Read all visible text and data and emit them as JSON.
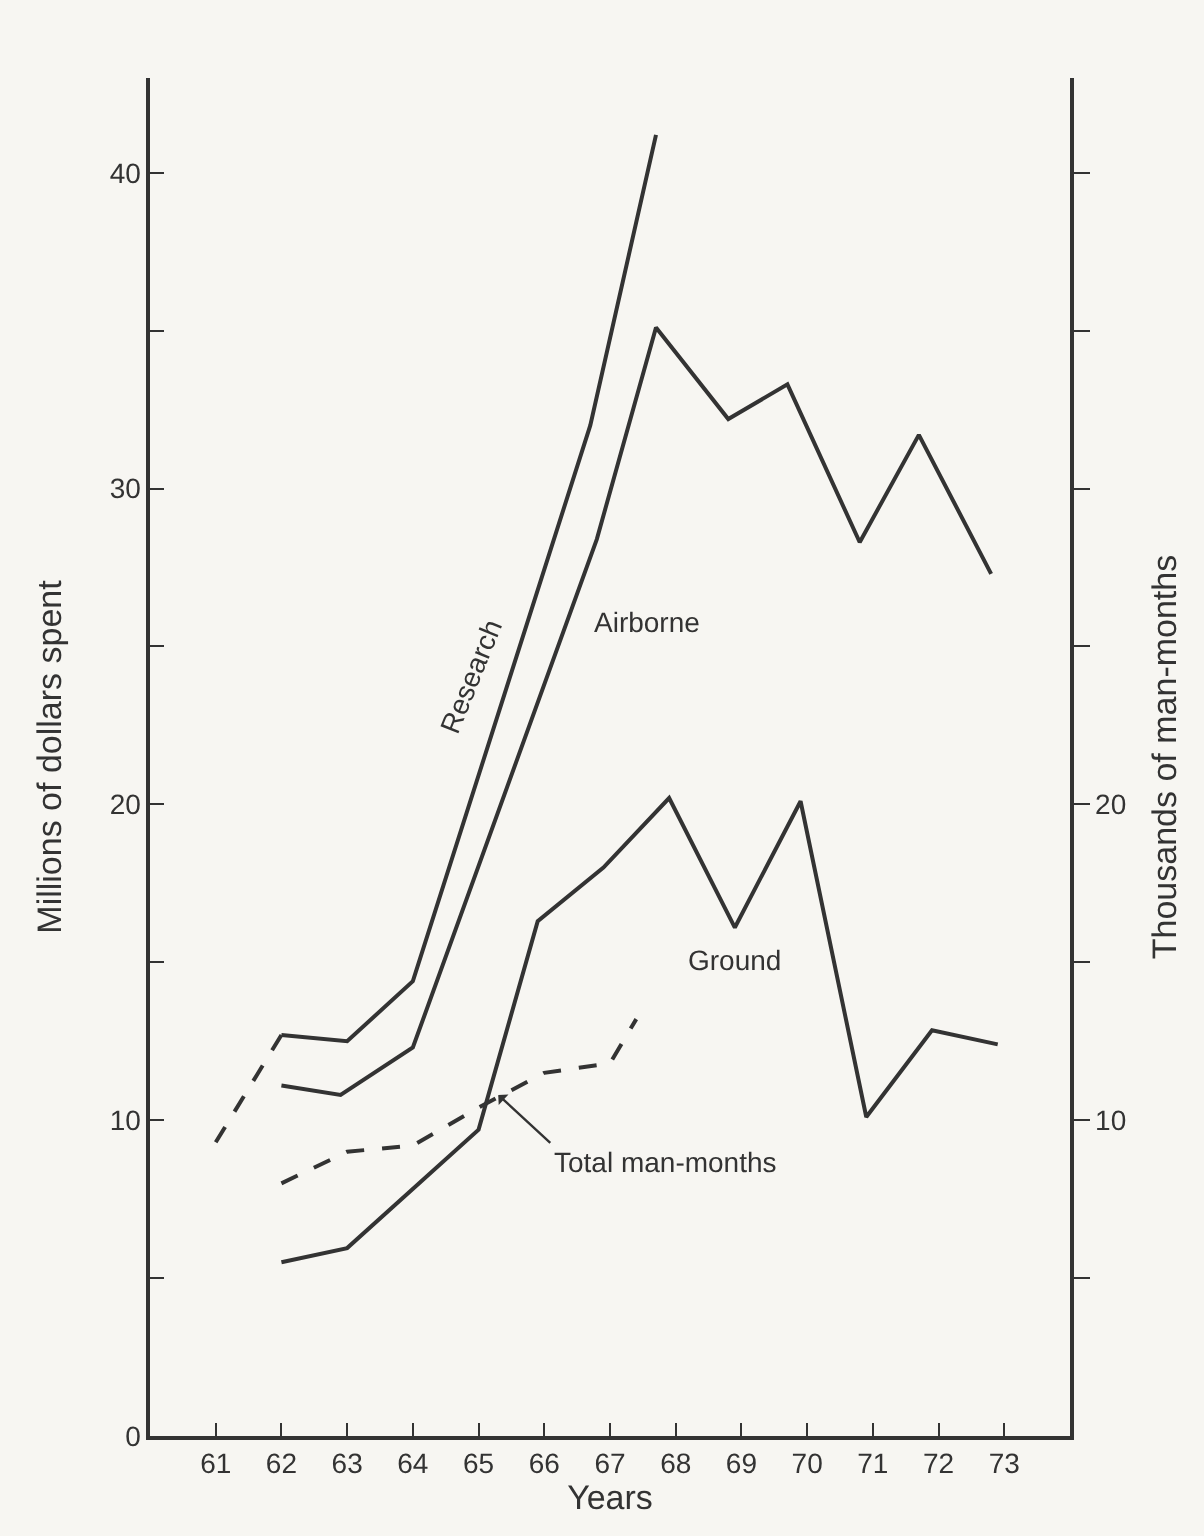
{
  "chart_data": {
    "type": "line",
    "xlabel": "Years",
    "ylabel": "Millions of dollars spent",
    "y2label": "Thousands of man-months",
    "xlim": [
      60,
      74
    ],
    "xticks": [
      61,
      62,
      63,
      64,
      65,
      66,
      67,
      68,
      69,
      70,
      71,
      72,
      73
    ],
    "ylim": [
      0,
      43
    ],
    "yticks": [
      0,
      {
        "value": 5,
        "label": null
      },
      10,
      {
        "value": 15,
        "label": null
      },
      20,
      {
        "value": 25,
        "label": null
      },
      30,
      {
        "value": 35,
        "label": null
      },
      40
    ],
    "y2lim": [
      0,
      43
    ],
    "y2ticks": [
      {
        "value": 5,
        "label": null
      },
      10,
      {
        "value": 15,
        "label": null
      },
      20,
      {
        "value": 25,
        "label": null
      },
      {
        "value": 30,
        "label": null
      },
      {
        "value": 35,
        "label": null
      },
      {
        "value": 40,
        "label": null
      }
    ],
    "grid": false,
    "legend": false,
    "marker": "none",
    "series": [
      {
        "name": "Research",
        "color": "#333333",
        "line_style": "solid",
        "x": [
          62,
          63,
          64,
          66.7,
          67.7
        ],
        "values": [
          12.7,
          12.5,
          14.4,
          32,
          41.2
        ]
      },
      {
        "color": "#333333",
        "line_style": "dashed",
        "x": [
          61,
          62
        ],
        "values": [
          9.3,
          12.7
        ]
      },
      {
        "name": "Airborne",
        "color": "#333333",
        "line_style": "solid",
        "x": [
          62,
          62.9,
          64,
          66.8,
          67.7,
          68.8,
          69.7,
          70.8,
          71.7,
          72.8
        ],
        "values": [
          11.1,
          10.8,
          12.3,
          28.4,
          35.1,
          32.2,
          33.3,
          28.3,
          31.7,
          27.3
        ]
      },
      {
        "name": "Ground",
        "color": "#333333",
        "line_style": "solid",
        "x": [
          62,
          63,
          65,
          65.9,
          66.9,
          67.9,
          68.9,
          69.9,
          70.9,
          71.9,
          72.9
        ],
        "values": [
          5.5,
          5.95,
          9.7,
          16.3,
          18,
          20.2,
          16.1,
          20.1,
          10.1,
          12.85,
          12.4
        ]
      },
      {
        "name": "Total man-months",
        "color": "#333333",
        "line_style": "dashed",
        "axis": "y2",
        "x": [
          62,
          63,
          64,
          65,
          66,
          67,
          67.4
        ],
        "values": [
          8,
          9,
          9.2,
          10.4,
          11.5,
          11.8,
          13.2
        ]
      }
    ]
  }
}
